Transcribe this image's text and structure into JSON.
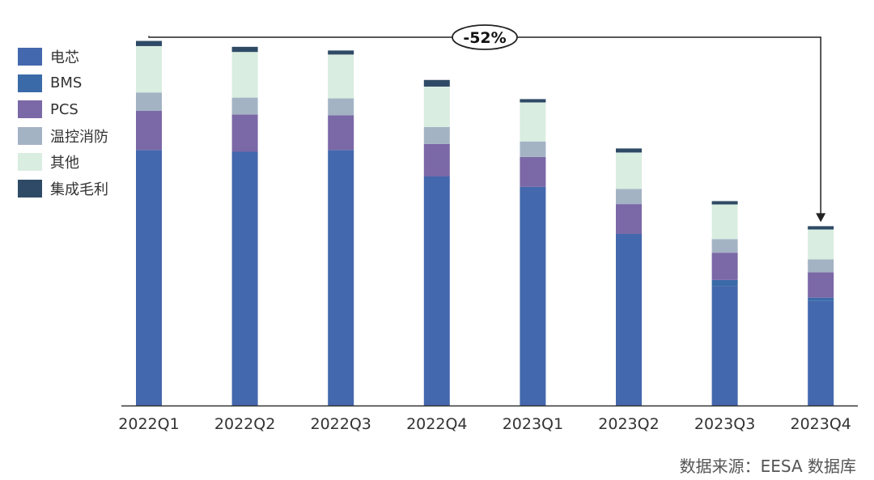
{
  "chart_data": {
    "type": "bar",
    "stacked": true,
    "categories": [
      "2022Q1",
      "2022Q2",
      "2022Q3",
      "2022Q4",
      "2023Q1",
      "2023Q2",
      "2023Q3",
      "2023Q4"
    ],
    "series": [
      {
        "name": "电芯",
        "color": "#4468ad",
        "values": [
          0.694,
          0.689,
          0.694,
          0.622,
          0.594,
          0.466,
          0.325,
          0.284
        ]
      },
      {
        "name": "BMS",
        "color": "#3a6ba8",
        "values": [
          0.0,
          0.0,
          0.0,
          0.0,
          0.0,
          0.0,
          0.016,
          0.009
        ]
      },
      {
        "name": "PCS",
        "color": "#7b68a6",
        "values": [
          0.106,
          0.101,
          0.094,
          0.088,
          0.081,
          0.081,
          0.074,
          0.069
        ]
      },
      {
        "name": "温控消防",
        "color": "#a4b3c4",
        "values": [
          0.05,
          0.046,
          0.046,
          0.046,
          0.042,
          0.041,
          0.037,
          0.035
        ]
      },
      {
        "name": "其他",
        "color": "#d9ede0",
        "values": [
          0.126,
          0.124,
          0.119,
          0.11,
          0.106,
          0.099,
          0.094,
          0.081
        ]
      },
      {
        "name": "集成毛利",
        "color": "#2f4a66",
        "values": [
          0.014,
          0.014,
          0.011,
          0.018,
          0.009,
          0.011,
          0.009,
          0.009
        ]
      }
    ],
    "ylim": [
      0,
      1.0
    ],
    "legend_position": "top-left",
    "grid": false,
    "annotation": {
      "text": "-52%",
      "from": "2022Q1",
      "to": "2023Q4"
    }
  },
  "legend": {
    "items": [
      "电芯",
      "BMS",
      "PCS",
      "温控消防",
      "其他",
      "集成毛利"
    ]
  },
  "source": "数据来源：EESA 数据库"
}
